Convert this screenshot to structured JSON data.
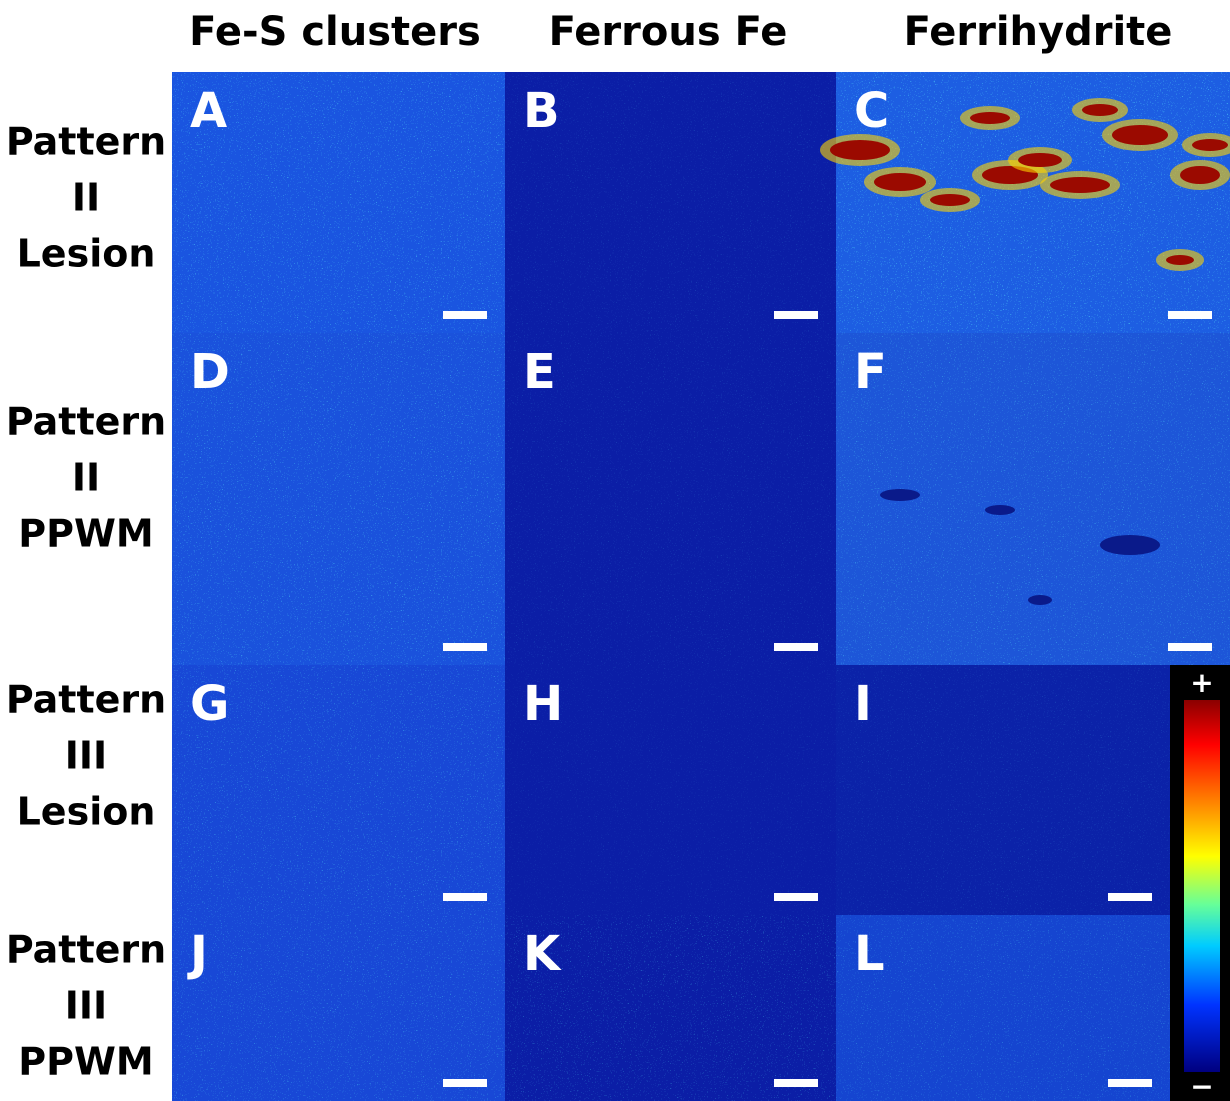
{
  "column_headers": [
    "Fe-S clusters",
    "Ferrous Fe",
    "Ferrihydrite"
  ],
  "rows": [
    {
      "label_lines": [
        "Pattern",
        "II",
        "Lesion"
      ]
    },
    {
      "label_lines": [
        "Pattern",
        "II",
        "PPWM"
      ]
    },
    {
      "label_lines": [
        "Pattern",
        "III",
        "Lesion"
      ]
    },
    {
      "label_lines": [
        "Pattern",
        "III",
        "PPWM"
      ]
    }
  ],
  "panels": [
    "A",
    "B",
    "C",
    "D",
    "E",
    "F",
    "G",
    "H",
    "I",
    "J",
    "K",
    "L"
  ],
  "colorbar": {
    "max_label": "+",
    "min_label": "−"
  }
}
